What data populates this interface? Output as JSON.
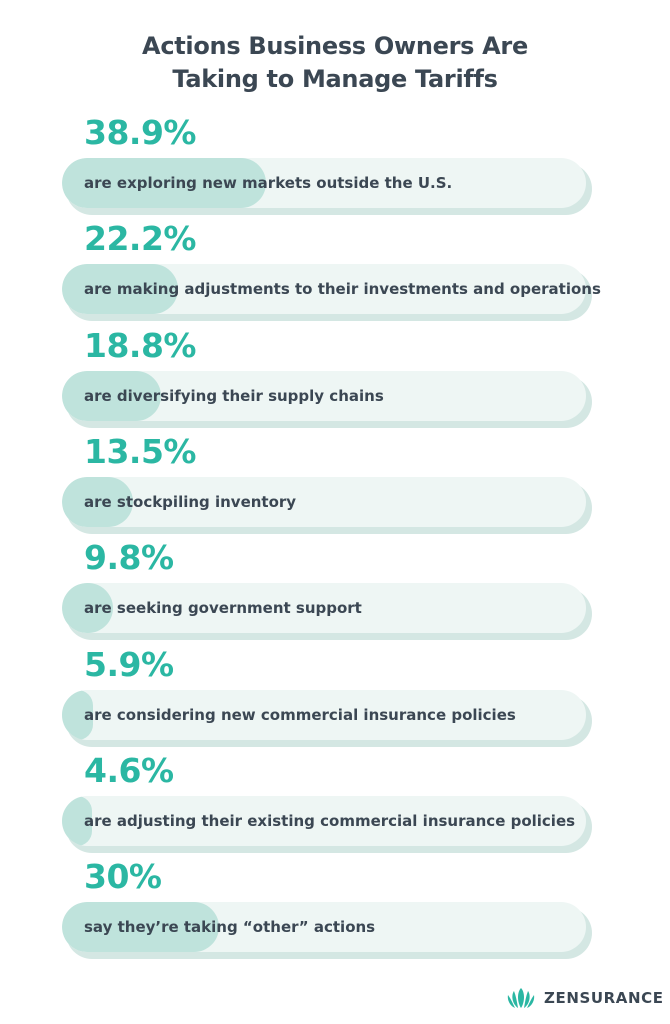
{
  "colors": {
    "percent": "#2bb7a3",
    "text": "#3b4753",
    "track": "#eef6f4",
    "track_shadow": "#d4e7e3",
    "fill": "#bfe3dc",
    "logo": "#2bb7a3"
  },
  "chart_data": {
    "type": "bar",
    "orientation": "horizontal",
    "title": "Actions Business Owners Are Taking to Manage Tariffs",
    "title_lines": [
      "Actions Business Owners Are",
      "Taking to Manage Tariffs"
    ],
    "xlim": [
      0,
      100
    ],
    "unit": "%",
    "grid": false,
    "legend": "none",
    "categories": [
      "are exploring new markets outside the U.S.",
      "are making adjustments to their investments and operations",
      "are diversifying their supply chains",
      "are stockpiling inventory",
      "are seeking government support",
      "are considering new commercial insurance policies",
      "are adjusting their existing commercial insurance policies",
      "say they’re taking “other” actions"
    ],
    "values": [
      38.9,
      22.2,
      18.8,
      13.5,
      9.8,
      5.9,
      4.6,
      30
    ],
    "value_labels": [
      "38.9%",
      "22.2%",
      "18.8%",
      "13.5%",
      "9.8%",
      "5.9%",
      "4.6%",
      "30%"
    ]
  },
  "brand": {
    "name": "ZENSURANCE",
    "logo_icon": "lotus-logo-icon"
  }
}
